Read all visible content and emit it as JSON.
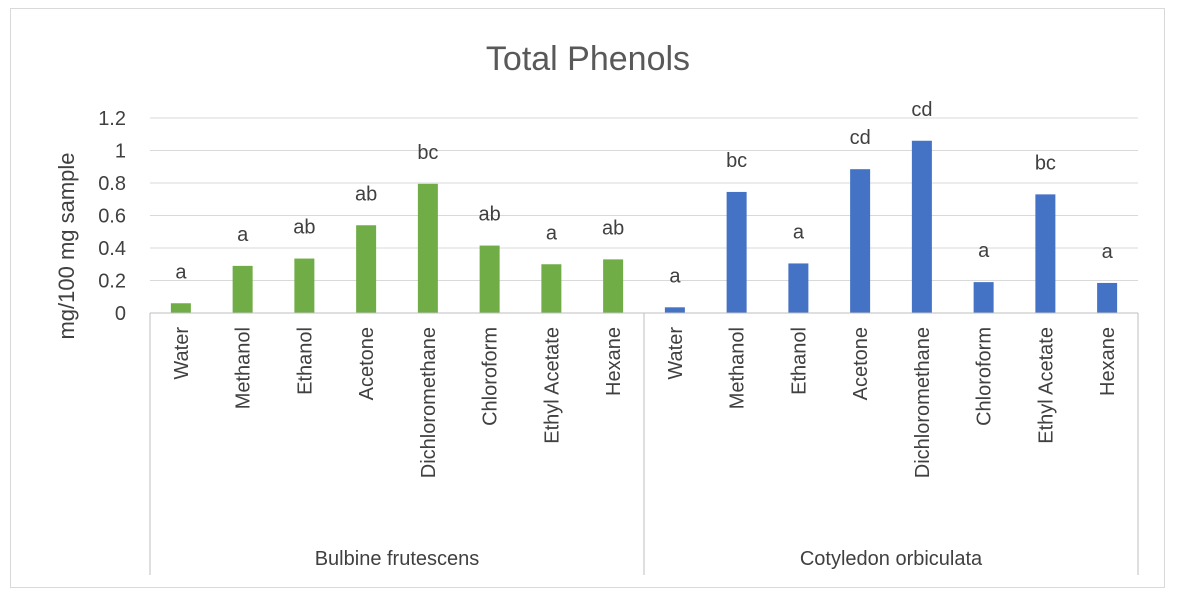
{
  "chart_data": {
    "type": "bar",
    "title": "Total Phenols",
    "ylabel": "mg/100 mg sample",
    "xlabel": "",
    "ylim": [
      0,
      1.2
    ],
    "yticks": [
      0,
      0.2,
      0.4,
      0.6,
      0.8,
      1,
      1.2
    ],
    "ytick_labels": [
      "0",
      "0.2",
      "0.4",
      "0.6",
      "0.8",
      "1",
      "1.2"
    ],
    "grid": true,
    "legend": "none",
    "categories": [
      "Water",
      "Methanol",
      "Ethanol",
      "Acetone",
      "Dichloromethane",
      "Chloroform",
      "Ethyl Acetate",
      "Hexane"
    ],
    "groups": [
      {
        "name": "Bulbine frutescens",
        "color": "#70ad47",
        "values": [
          0.06,
          0.29,
          0.335,
          0.54,
          0.795,
          0.415,
          0.3,
          0.33
        ],
        "labels": [
          "a",
          "a",
          "ab",
          "ab",
          "bc",
          "ab",
          "a",
          "ab"
        ]
      },
      {
        "name": "Cotyledon orbiculata",
        "color": "#4472c4",
        "values": [
          0.035,
          0.745,
          0.305,
          0.885,
          1.06,
          0.19,
          0.73,
          0.185
        ],
        "labels": [
          "a",
          "bc",
          "a",
          "cd",
          "cd",
          "a",
          "bc",
          "a"
        ]
      }
    ]
  }
}
